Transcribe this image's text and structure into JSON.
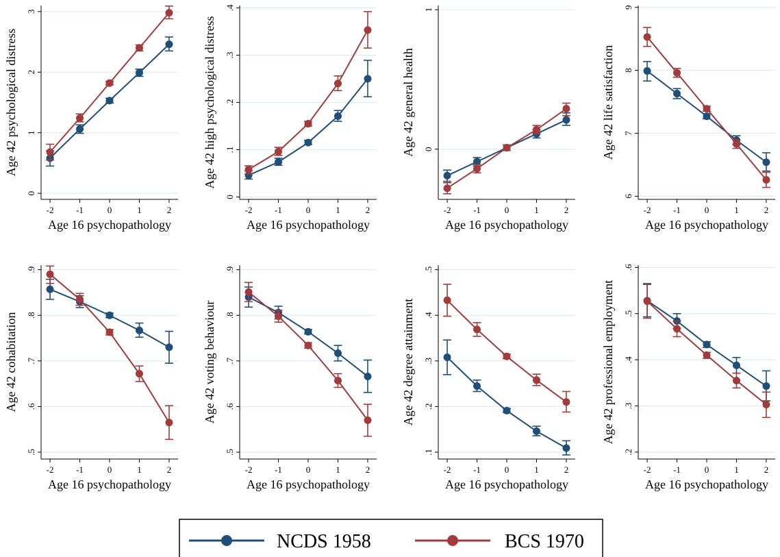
{
  "colors": {
    "ncds": "#1f4e79",
    "bcs": "#a23b3b",
    "grid": "#d7ecea",
    "axis": "#000000"
  },
  "legend": {
    "placement": "bottom-center",
    "items": [
      {
        "label": "NCDS 1958",
        "color": "#1f4e79"
      },
      {
        "label": "BCS 1970",
        "color": "#a23b3b"
      }
    ]
  },
  "chart_data": [
    {
      "type": "line",
      "xlabel": "Age 16 psychopathology",
      "ylabel": "Age 42 psychological distress",
      "x": [
        -2,
        -1,
        0,
        1,
        2
      ],
      "xticks": [
        "-2",
        "-1",
        "0",
        "1",
        "2"
      ],
      "ylim": [
        -0.1,
        3.1
      ],
      "yticks": [
        0,
        1,
        2,
        3
      ],
      "yticklabels": [
        "0",
        "1",
        "2",
        "3"
      ],
      "grid": true,
      "series": [
        {
          "name": "NCDS 1958",
          "values": [
            0.58,
            1.06,
            1.53,
            1.99,
            2.46
          ],
          "ci_low": [
            0.45,
            0.99,
            1.49,
            1.93,
            2.35
          ],
          "ci_high": [
            0.7,
            1.13,
            1.57,
            2.05,
            2.58
          ]
        },
        {
          "name": "BCS 1970",
          "values": [
            0.68,
            1.24,
            1.82,
            2.4,
            2.98
          ],
          "ci_low": [
            0.55,
            1.18,
            1.79,
            2.35,
            2.88
          ],
          "ci_high": [
            0.81,
            1.31,
            1.85,
            2.45,
            3.09
          ]
        }
      ]
    },
    {
      "type": "line",
      "xlabel": "Age 16 psychopathology",
      "ylabel": "Age 42 high psychological distress",
      "x": [
        -2,
        -1,
        0,
        1,
        2
      ],
      "xticks": [
        "-2",
        "-1",
        "0",
        "1",
        "2"
      ],
      "ylim": [
        -0.005,
        0.405
      ],
      "yticks": [
        0,
        0.1,
        0.2,
        0.3,
        0.4
      ],
      "yticklabels": [
        "0",
        ".1",
        ".2",
        ".3",
        ".4"
      ],
      "grid": true,
      "series": [
        {
          "name": "NCDS 1958",
          "values": [
            0.046,
            0.074,
            0.115,
            0.171,
            0.25
          ],
          "ci_low": [
            0.038,
            0.067,
            0.111,
            0.16,
            0.212
          ],
          "ci_high": [
            0.055,
            0.082,
            0.12,
            0.183,
            0.289
          ]
        },
        {
          "name": "BCS 1970",
          "values": [
            0.058,
            0.096,
            0.155,
            0.24,
            0.353
          ],
          "ci_low": [
            0.049,
            0.088,
            0.15,
            0.225,
            0.315
          ],
          "ci_high": [
            0.066,
            0.105,
            0.16,
            0.256,
            0.392
          ]
        }
      ]
    },
    {
      "type": "line",
      "xlabel": "Age 16 psychopathology",
      "ylabel": "Age 42 general health",
      "x": [
        -2,
        -1,
        0,
        1,
        2
      ],
      "xticks": [
        "-2",
        "-1",
        "0",
        "1",
        "2"
      ],
      "ylim": [
        -0.36,
        1.03
      ],
      "yticks": [
        0,
        1
      ],
      "yticklabels": [
        "0",
        "1"
      ],
      "grid": true,
      "series": [
        {
          "name": "NCDS 1958",
          "values": [
            -0.19,
            -0.09,
            0.01,
            0.11,
            0.21
          ],
          "ci_low": [
            -0.24,
            -0.12,
            -0.01,
            0.08,
            0.17
          ],
          "ci_high": [
            -0.15,
            -0.06,
            0.03,
            0.14,
            0.26
          ]
        },
        {
          "name": "BCS 1970",
          "values": [
            -0.28,
            -0.14,
            0.01,
            0.14,
            0.29
          ],
          "ci_low": [
            -0.32,
            -0.17,
            -0.01,
            0.11,
            0.24
          ],
          "ci_high": [
            -0.23,
            -0.11,
            0.03,
            0.17,
            0.33
          ]
        }
      ]
    },
    {
      "type": "line",
      "xlabel": "Age 16 psychopathology",
      "ylabel": "Age 42 life satisfaction",
      "x": [
        -2,
        -1,
        0,
        1,
        2
      ],
      "xticks": [
        "-2",
        "-1",
        "0",
        "1",
        "2"
      ],
      "ylim": [
        5.95,
        9.03
      ],
      "yticks": [
        6,
        7,
        8,
        9
      ],
      "yticklabels": [
        "6",
        "7",
        "8",
        "9"
      ],
      "grid": true,
      "series": [
        {
          "name": "NCDS 1958",
          "values": [
            7.99,
            7.63,
            7.27,
            6.89,
            6.54
          ],
          "ci_low": [
            7.83,
            7.55,
            7.23,
            6.82,
            6.4
          ],
          "ci_high": [
            8.14,
            7.71,
            7.31,
            6.96,
            6.69
          ]
        },
        {
          "name": "BCS 1970",
          "values": [
            8.53,
            7.96,
            7.39,
            6.83,
            6.26
          ],
          "ci_low": [
            8.38,
            7.89,
            7.35,
            6.76,
            6.14
          ],
          "ci_high": [
            8.68,
            8.03,
            7.43,
            6.9,
            6.38
          ]
        }
      ]
    },
    {
      "type": "line",
      "xlabel": "Age 16 psychopathology",
      "ylabel": "Age 42 cohabitation",
      "x": [
        -2,
        -1,
        0,
        1,
        2
      ],
      "xticks": [
        "-2",
        "-1",
        "0",
        "1",
        "2"
      ],
      "ylim": [
        0.485,
        0.91
      ],
      "yticks": [
        0.5,
        0.6,
        0.7,
        0.8,
        0.9
      ],
      "yticklabels": [
        ".5",
        ".6",
        ".7",
        ".8",
        ".9"
      ],
      "grid": true,
      "series": [
        {
          "name": "NCDS 1958",
          "values": [
            0.857,
            0.83,
            0.8,
            0.767,
            0.73
          ],
          "ci_low": [
            0.835,
            0.817,
            0.795,
            0.752,
            0.695
          ],
          "ci_high": [
            0.879,
            0.843,
            0.805,
            0.783,
            0.765
          ]
        },
        {
          "name": "BCS 1970",
          "values": [
            0.89,
            0.835,
            0.763,
            0.672,
            0.565
          ],
          "ci_low": [
            0.87,
            0.822,
            0.757,
            0.655,
            0.528
          ],
          "ci_high": [
            0.908,
            0.848,
            0.769,
            0.689,
            0.602
          ]
        }
      ]
    },
    {
      "type": "line",
      "xlabel": "Age 16 psychopathology",
      "ylabel": "Age 42 voting behaviour",
      "x": [
        -2,
        -1,
        0,
        1,
        2
      ],
      "xticks": [
        "-2",
        "-1",
        "0",
        "1",
        "2"
      ],
      "ylim": [
        0.485,
        0.91
      ],
      "yticks": [
        0.5,
        0.6,
        0.7,
        0.8,
        0.9
      ],
      "yticklabels": [
        ".5",
        ".6",
        ".7",
        ".8",
        ".9"
      ],
      "grid": true,
      "series": [
        {
          "name": "NCDS 1958",
          "values": [
            0.84,
            0.806,
            0.764,
            0.717,
            0.666
          ],
          "ci_low": [
            0.818,
            0.792,
            0.759,
            0.7,
            0.631
          ],
          "ci_high": [
            0.862,
            0.82,
            0.769,
            0.734,
            0.702
          ]
        },
        {
          "name": "BCS 1970",
          "values": [
            0.851,
            0.798,
            0.734,
            0.657,
            0.57
          ],
          "ci_low": [
            0.83,
            0.785,
            0.728,
            0.642,
            0.535
          ],
          "ci_high": [
            0.872,
            0.811,
            0.74,
            0.672,
            0.605
          ]
        }
      ]
    },
    {
      "type": "line",
      "xlabel": "Age 16 psychopathology",
      "ylabel": "Age 42 degree attainment",
      "x": [
        -2,
        -1,
        0,
        1,
        2
      ],
      "xticks": [
        "-2",
        "-1",
        "0",
        "1",
        "2"
      ],
      "ylim": [
        0.085,
        0.51
      ],
      "yticks": [
        0.1,
        0.2,
        0.3,
        0.4,
        0.5
      ],
      "yticklabels": [
        ".1",
        ".2",
        ".3",
        ".4",
        ".5"
      ],
      "grid": true,
      "series": [
        {
          "name": "NCDS 1958",
          "values": [
            0.308,
            0.245,
            0.191,
            0.146,
            0.109
          ],
          "ci_low": [
            0.27,
            0.233,
            0.187,
            0.136,
            0.094
          ],
          "ci_high": [
            0.346,
            0.258,
            0.196,
            0.157,
            0.125
          ]
        },
        {
          "name": "BCS 1970",
          "values": [
            0.433,
            0.369,
            0.31,
            0.258,
            0.21
          ],
          "ci_low": [
            0.398,
            0.354,
            0.305,
            0.246,
            0.188
          ],
          "ci_high": [
            0.468,
            0.384,
            0.315,
            0.271,
            0.233
          ]
        }
      ]
    },
    {
      "type": "line",
      "xlabel": "Age 16 psychopathology",
      "ylabel": "Age 42 professional employment",
      "x": [
        -2,
        -1,
        0,
        1,
        2
      ],
      "xticks": [
        "-2",
        "-1",
        "0",
        "1",
        "2"
      ],
      "ylim": [
        0.185,
        0.605
      ],
      "yticks": [
        0.2,
        0.3,
        0.4,
        0.5,
        0.6
      ],
      "yticklabels": [
        ".2",
        ".3",
        ".4",
        ".5",
        ".6"
      ],
      "grid": true,
      "series": [
        {
          "name": "NCDS 1958",
          "values": [
            0.528,
            0.484,
            0.433,
            0.388,
            0.343
          ],
          "ci_low": [
            0.493,
            0.468,
            0.427,
            0.371,
            0.311
          ],
          "ci_high": [
            0.565,
            0.5,
            0.439,
            0.405,
            0.376
          ]
        },
        {
          "name": "BCS 1970",
          "values": [
            0.527,
            0.467,
            0.41,
            0.355,
            0.303
          ],
          "ci_low": [
            0.49,
            0.45,
            0.403,
            0.339,
            0.275
          ],
          "ci_high": [
            0.563,
            0.484,
            0.416,
            0.371,
            0.33
          ]
        }
      ]
    }
  ]
}
